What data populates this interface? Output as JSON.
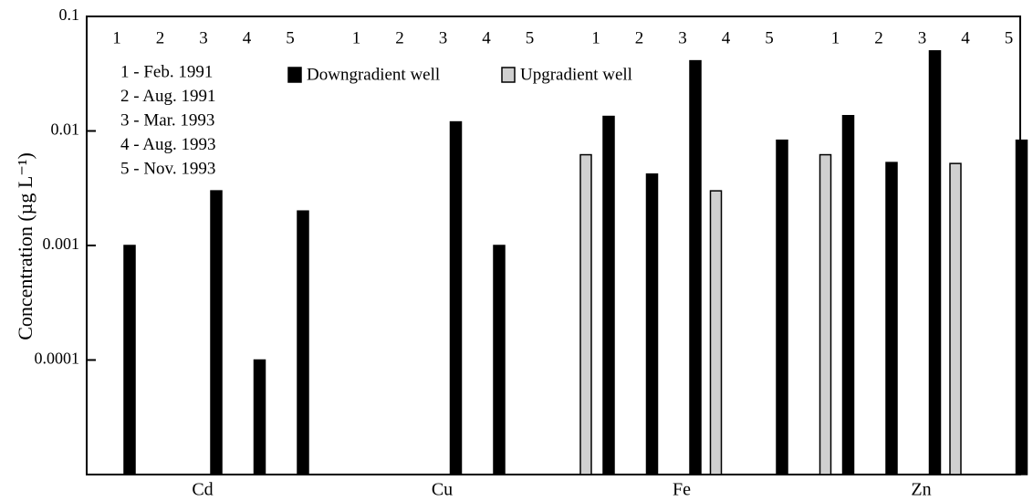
{
  "chart_data": {
    "type": "grouped_bar",
    "ylabel": "Concentration (µg L⁻¹)",
    "groups": [
      "Cd",
      "Cu",
      "Fe",
      "Zn"
    ],
    "subcategories": [
      "1",
      "2",
      "3",
      "4",
      "5"
    ],
    "annotations": [
      "1 - Feb.  1991",
      "2 - Aug. 1991",
      "3 - Mar. 1993",
      "4 - Aug. 1993",
      "5 - Nov. 1993"
    ],
    "series": [
      {
        "name": "Downgradient well",
        "color": "#000000",
        "values": [
          [
            0.001,
            null,
            0.003,
            0.0001,
            0.002
          ],
          [
            null,
            null,
            0.012,
            0.001,
            null
          ],
          [
            0.0134,
            0.0042,
            0.041,
            null,
            0.0083
          ],
          [
            0.0136,
            0.0053,
            0.05,
            null,
            0.0083
          ]
        ]
      },
      {
        "name": "Upgradient well",
        "color": "#d0d0d0",
        "values": [
          [
            null,
            null,
            null,
            null,
            null
          ],
          [
            null,
            null,
            null,
            null,
            null
          ],
          [
            0.0062,
            null,
            null,
            0.003,
            null
          ],
          [
            0.0062,
            null,
            null,
            0.0052,
            null
          ]
        ]
      }
    ],
    "log_scale": true,
    "ylim": [
      1e-05,
      0.1
    ],
    "yticks": [
      0.1,
      0.01,
      0.001,
      0.0001
    ]
  }
}
